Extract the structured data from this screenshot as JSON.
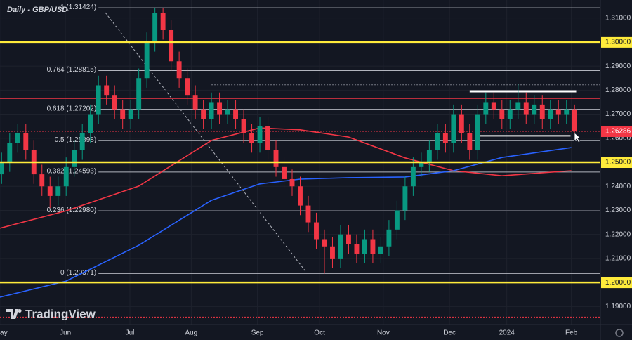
{
  "chart_data": {
    "type": "candlestick",
    "title": "Daily - GBP/USD",
    "watermark": "TradingView",
    "xlim": [
      -0.2,
      74.2
    ],
    "ylim": [
      1.1825,
      1.3175
    ],
    "xticks": [
      {
        "value": -0.1,
        "label": "May"
      },
      {
        "value": 7.9,
        "label": "Jun"
      },
      {
        "value": 15.9,
        "label": "Jul"
      },
      {
        "value": 23.5,
        "label": "Aug"
      },
      {
        "value": 31.7,
        "label": "Sep"
      },
      {
        "value": 39.4,
        "label": "Oct"
      },
      {
        "value": 47.3,
        "label": "Nov"
      },
      {
        "value": 55.5,
        "label": "Dec"
      },
      {
        "value": 62.6,
        "label": "2024"
      },
      {
        "value": 70.6,
        "label": "Feb"
      }
    ],
    "yticks": [
      {
        "value": 1.31,
        "label": "1.31000"
      },
      {
        "value": 1.29,
        "label": "1.29000"
      },
      {
        "value": 1.28,
        "label": "1.28000"
      },
      {
        "value": 1.27,
        "label": "1.27000"
      },
      {
        "value": 1.26,
        "label": "1.26000"
      },
      {
        "value": 1.24,
        "label": "1.24000"
      },
      {
        "value": 1.23,
        "label": "1.23000"
      },
      {
        "value": 1.22,
        "label": "1.22000"
      },
      {
        "value": 1.21,
        "label": "1.21000"
      },
      {
        "value": 1.19,
        "label": "1.19000"
      }
    ],
    "up_color": "#089981",
    "down_color": "#f23645",
    "candles": {
      "open": [
        1.245,
        1.25,
        1.258,
        1.262,
        1.255,
        1.245,
        1.24,
        1.236,
        1.24,
        1.248,
        1.255,
        1.262,
        1.27,
        1.282,
        1.278,
        1.272,
        1.268,
        1.272,
        1.285,
        1.3,
        1.312,
        1.305,
        1.292,
        1.285,
        1.278,
        1.272,
        1.268,
        1.275,
        1.27,
        1.272,
        1.268,
        1.262,
        1.258,
        1.265,
        1.255,
        1.248,
        1.243,
        1.24,
        1.232,
        1.225,
        1.218,
        1.215,
        1.21,
        1.22,
        1.216,
        1.212,
        1.218,
        1.212,
        1.215,
        1.222,
        1.23,
        1.24,
        1.248,
        1.25,
        1.255,
        1.262,
        1.258,
        1.27,
        1.262,
        1.255,
        1.27,
        1.275,
        1.272,
        1.268,
        1.272,
        1.275,
        1.27,
        1.274,
        1.268,
        1.272,
        1.27,
        1.272
      ],
      "high": [
        1.254,
        1.262,
        1.266,
        1.266,
        1.259,
        1.249,
        1.244,
        1.244,
        1.252,
        1.259,
        1.266,
        1.274,
        1.286,
        1.286,
        1.282,
        1.276,
        1.276,
        1.289,
        1.304,
        1.3142,
        1.314,
        1.309,
        1.296,
        1.289,
        1.282,
        1.276,
        1.279,
        1.279,
        1.276,
        1.276,
        1.272,
        1.266,
        1.269,
        1.269,
        1.259,
        1.252,
        1.247,
        1.244,
        1.236,
        1.229,
        1.222,
        1.219,
        1.224,
        1.224,
        1.22,
        1.222,
        1.222,
        1.219,
        1.226,
        1.234,
        1.244,
        1.252,
        1.254,
        1.259,
        1.266,
        1.266,
        1.274,
        1.274,
        1.266,
        1.274,
        1.279,
        1.279,
        1.276,
        1.276,
        1.2827,
        1.279,
        1.278,
        1.278,
        1.276,
        1.276,
        1.276,
        1.274
      ],
      "low": [
        1.241,
        1.246,
        1.254,
        1.251,
        1.241,
        1.236,
        1.231,
        1.232,
        1.236,
        1.244,
        1.251,
        1.258,
        1.266,
        1.274,
        1.268,
        1.264,
        1.264,
        1.268,
        1.281,
        1.296,
        1.301,
        1.288,
        1.281,
        1.274,
        1.268,
        1.264,
        1.264,
        1.266,
        1.266,
        1.264,
        1.258,
        1.254,
        1.254,
        1.251,
        1.244,
        1.239,
        1.236,
        1.228,
        1.221,
        1.214,
        1.2037,
        1.206,
        1.206,
        1.212,
        1.208,
        1.208,
        1.208,
        1.208,
        1.211,
        1.218,
        1.226,
        1.236,
        1.244,
        1.246,
        1.251,
        1.254,
        1.254,
        1.258,
        1.251,
        1.251,
        1.266,
        1.268,
        1.264,
        1.264,
        1.268,
        1.266,
        1.266,
        1.264,
        1.264,
        1.266,
        1.266,
        1.2615
      ],
      "close": [
        1.25,
        1.258,
        1.262,
        1.255,
        1.245,
        1.24,
        1.236,
        1.24,
        1.248,
        1.255,
        1.262,
        1.27,
        1.282,
        1.278,
        1.272,
        1.268,
        1.272,
        1.285,
        1.3,
        1.312,
        1.305,
        1.292,
        1.285,
        1.278,
        1.272,
        1.268,
        1.275,
        1.27,
        1.272,
        1.268,
        1.262,
        1.258,
        1.265,
        1.255,
        1.248,
        1.243,
        1.24,
        1.232,
        1.225,
        1.218,
        1.215,
        1.21,
        1.22,
        1.216,
        1.212,
        1.218,
        1.212,
        1.215,
        1.222,
        1.23,
        1.24,
        1.248,
        1.25,
        1.255,
        1.262,
        1.258,
        1.27,
        1.262,
        1.255,
        1.27,
        1.275,
        1.272,
        1.268,
        1.272,
        1.275,
        1.27,
        1.274,
        1.268,
        1.272,
        1.27,
        1.272,
        1.26286
      ]
    },
    "moving_averages": [
      {
        "color": "#f23645",
        "x": [
          -0.2,
          8,
          17,
          26,
          32,
          37,
          43,
          50,
          56,
          62,
          70.6
        ],
        "values": [
          1.2226,
          1.2298,
          1.2401,
          1.2591,
          1.2643,
          1.2635,
          1.2605,
          1.2518,
          1.2465,
          1.2444,
          1.2465
        ]
      },
      {
        "color": "#2962ff",
        "x": [
          -0.2,
          8,
          17,
          26,
          32,
          37,
          43,
          50,
          56,
          62,
          70.6
        ],
        "values": [
          1.1939,
          1.2006,
          1.2155,
          1.2342,
          1.241,
          1.243,
          1.2436,
          1.2439,
          1.2465,
          1.252,
          1.2561
        ]
      }
    ],
    "fib_start": 12,
    "fib_levels": [
      {
        "value": 1.31424,
        "label": "1 (1.31424)"
      },
      {
        "value": 1.28815,
        "label": "0.764 (1.28815)"
      },
      {
        "value": 1.27202,
        "label": "0.618 (1.27202)"
      },
      {
        "value": 1.25898,
        "label": "0.5 (1.25898)"
      },
      {
        "value": 1.24593,
        "label": "0.382 (1.24593)"
      },
      {
        "value": 1.2298,
        "label": "0.236 (1.22980)"
      },
      {
        "value": 1.20371,
        "label": "0 (1.20371)"
      }
    ],
    "levels": [
      {
        "value": 1.3,
        "label": "1.30000",
        "color": "#ffeb3b"
      },
      {
        "value": 1.25,
        "label": "1.25000",
        "color": "#ffeb3b"
      },
      {
        "value": 1.2,
        "label": "1.20000",
        "color": "#ffeb3b"
      }
    ],
    "lines": [
      {
        "value": 1.2765,
        "color": "#f23645",
        "dash": false,
        "width": 1,
        "from": -0.2,
        "to": 74.2
      },
      {
        "value": 1.2822,
        "color": "#787b86",
        "dash": true,
        "width": 1,
        "from": 26,
        "to": 74.2
      },
      {
        "value": 1.26286,
        "color": "#f23645",
        "dash": true,
        "width": 1,
        "from": -0.2,
        "to": 74.2
      },
      {
        "value": 1.1856,
        "color": "#f23645",
        "dash": true,
        "width": 1,
        "from": -0.2,
        "to": 74.2
      },
      {
        "value": 1.2795,
        "color": "#ffffff",
        "dash": false,
        "width": 3,
        "from": 58,
        "to": 71.2
      },
      {
        "value": 1.261,
        "color": "#ffffff",
        "dash": false,
        "width": 2,
        "from": 59.3,
        "to": 70.5
      }
    ],
    "last_price": {
      "value": 1.26286,
      "label": "1.26286",
      "color": "#f23645"
    }
  }
}
